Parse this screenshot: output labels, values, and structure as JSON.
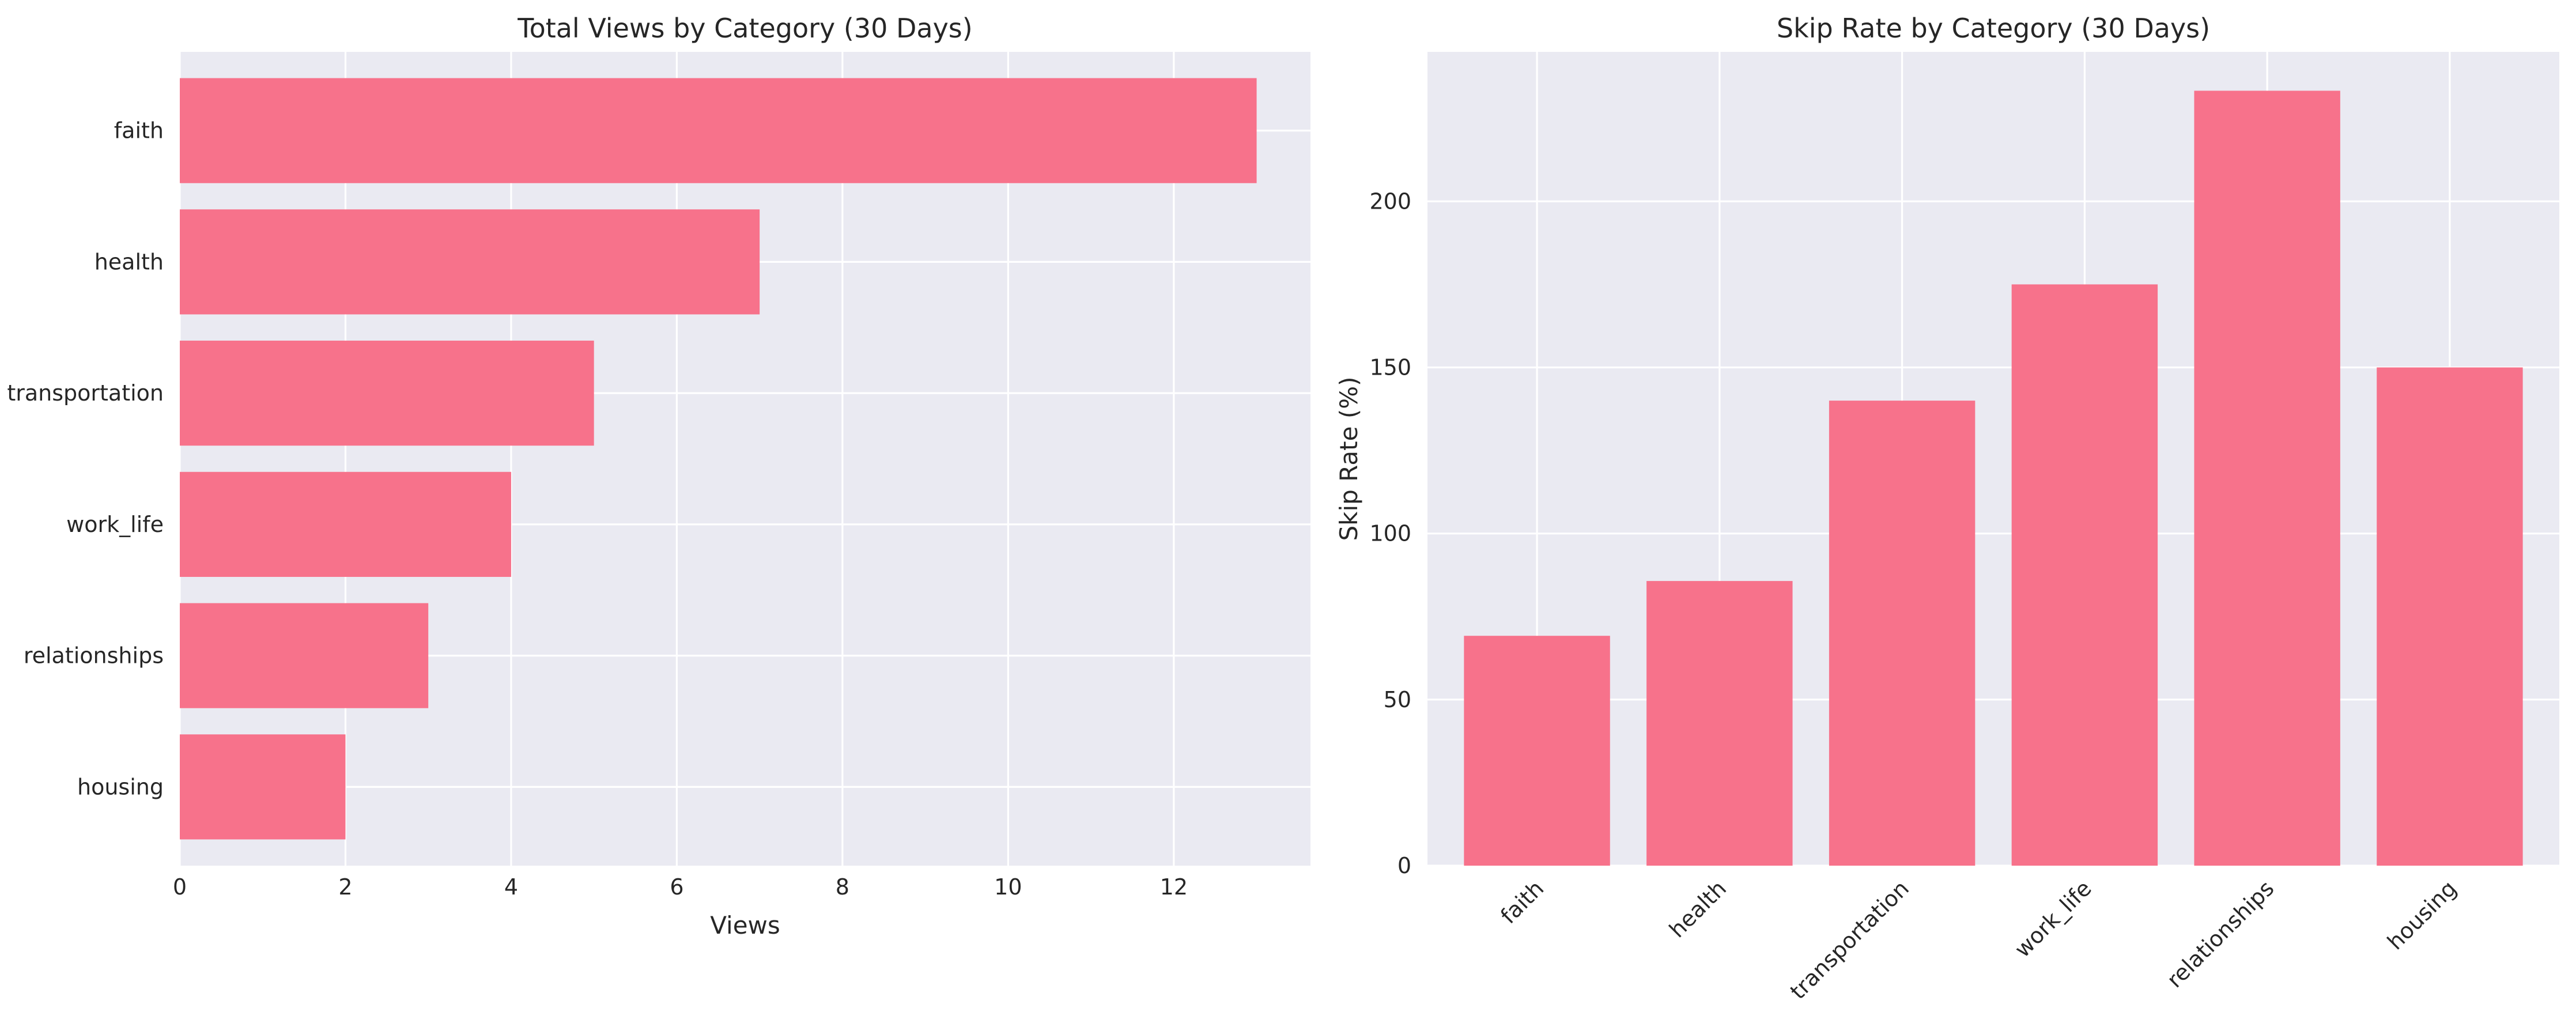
{
  "colors": {
    "bar": "#f7728b",
    "plot_background": "#eaeaf2",
    "grid": "#ffffff",
    "text": "#262626"
  },
  "chart_data": [
    {
      "type": "bar",
      "orientation": "horizontal",
      "title": "Total Views by Category (30 Days)",
      "xlabel": "Views",
      "ylabel": "",
      "categories": [
        "faith",
        "health",
        "transportation",
        "work_life",
        "relationships",
        "housing"
      ],
      "values": [
        13,
        7,
        5,
        4,
        3,
        2
      ],
      "xlim": [
        0,
        13.65
      ],
      "xticks": [
        0,
        2,
        4,
        6,
        8,
        10,
        12
      ],
      "grid": true,
      "legend": "none"
    },
    {
      "type": "bar",
      "orientation": "vertical",
      "title": "Skip Rate by Category (30 Days)",
      "xlabel": "",
      "ylabel": "Skip Rate (%)",
      "categories": [
        "faith",
        "health",
        "transportation",
        "work_life",
        "relationships",
        "housing"
      ],
      "values": [
        69.2,
        85.7,
        140,
        175,
        233.3,
        150
      ],
      "ylim": [
        0,
        245
      ],
      "yticks": [
        0,
        50,
        100,
        150,
        200
      ],
      "xtick_rotation": 45,
      "grid": true,
      "legend": "none"
    }
  ]
}
